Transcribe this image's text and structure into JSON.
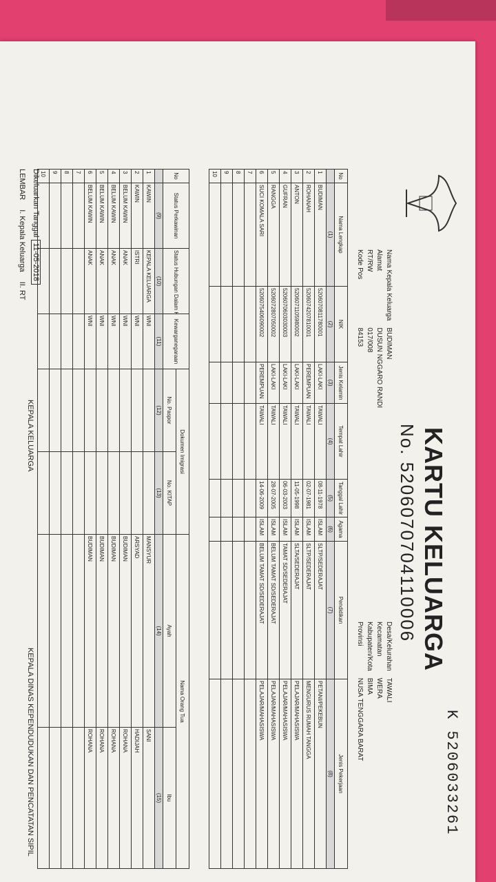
{
  "header": {
    "serial": "K 5206033261",
    "title": "KARTU KELUARGA",
    "number": "No. 5206070704110006",
    "fields_left": [
      {
        "label": "Nama Kepala Keluarga",
        "value": "BUDIMAN"
      },
      {
        "label": "Alamat",
        "value": "DUSUN NGGARO RANDI"
      },
      {
        "label": "RT/RW",
        "value": "017/008"
      },
      {
        "label": "Kode Pos",
        "value": "84153"
      }
    ],
    "fields_right": [
      {
        "label": "Desa/Kelurahan",
        "value": "TAWALI"
      },
      {
        "label": "Kecamatan",
        "value": "WERA"
      },
      {
        "label": "Kabupaten/Kota",
        "value": "BIMA"
      },
      {
        "label": "Provinsi",
        "value": "NUSA TENGGARA BARAT"
      }
    ]
  },
  "members_table": {
    "headers": [
      "No",
      "Nama Lengkap",
      "NIK",
      "Jenis Kelamin",
      "Tempat Lahir",
      "Tanggal Lahir",
      "Agama",
      "Pendidikan",
      "Jenis Pekerjaan"
    ],
    "column_numbers": [
      "(1)",
      "(2)",
      "(3)",
      "(4)",
      "(5)",
      "(6)",
      "(7)",
      "(8)"
    ],
    "rows": [
      [
        "1",
        "BUDIMAN",
        "5206070811780001",
        "LAKI-LAKI",
        "TAWALI",
        "08-11-1978",
        "ISLAM",
        "SLTP/SEDERAJAT",
        "PETANI/PEKEBUN"
      ],
      [
        "2",
        "ROHANAH",
        "5206074207810001",
        "PEREMPUAN",
        "TAWALI",
        "02-07-1981",
        "ISLAM",
        "SLTP/SEDERAJAT",
        "MENGURUS RUMAH TANGGA"
      ],
      [
        "3",
        "ANTON",
        "5206071105980002",
        "LAKI-LAKI",
        "TAWALI",
        "11-05-1998",
        "ISLAM",
        "SLTA/SEDERAJAT",
        "PELAJAR/MAHASISWA"
      ],
      [
        "4",
        "GUFRAN",
        "5206070603030003",
        "LAKI-LAKI",
        "TAWALI",
        "06-03-2003",
        "ISLAM",
        "TAMAT SD/SEDERAJAT",
        "PELAJAR/MAHASISWA"
      ],
      [
        "5",
        "RANGGA",
        "5206072807050002",
        "LAKI-LAKI",
        "TAWALI",
        "28-07-2005",
        "ISLAM",
        "BELUM TAMAT SD/SEDERAJAT",
        "PELAJAR/MAHASISWA"
      ],
      [
        "6",
        "SUCI KOMALA SARI",
        "5206075406090002",
        "PEREMPUAN",
        "TAWALI",
        "14-06-2009",
        "ISLAM",
        "BELUM TAMAT SD/SEDERAJAT",
        "PELAJAR/MAHASISWA"
      ],
      [
        "7"
      ],
      [
        "8"
      ],
      [
        "9"
      ],
      [
        "10"
      ]
    ]
  },
  "status_table": {
    "headers": {
      "no": "No",
      "status_perkawinan": "Status Perkawinan",
      "hubungan": "Status Hubungan Dalam Keluarga",
      "kewarganegaraan": "Kewarganegaraan",
      "dokumen_imigrasi": "Dokumen Imigrasi",
      "no_paspor": "No. Paspor",
      "no_kitap": "No. KITAP",
      "nama_orang_tua": "Nama Orang Tua",
      "ayah": "Ayah",
      "ibu": "Ibu"
    },
    "column_numbers": {
      "status_perkawinan": "(9)",
      "hubungan": "(10)",
      "kewarganegaraan": "(11)",
      "no_paspor": "(12)",
      "no_kitap": "(13)",
      "ayah": "(14)",
      "ibu": "(15)"
    },
    "rows": [
      {
        "no": "1",
        "status_perkawinan": "KAWIN",
        "hubungan": "KEPALA KELUARGA",
        "kewarganegaraan": "WNI",
        "ayah": "MANSYUR",
        "ibu": "SANI"
      },
      {
        "no": "2",
        "status_perkawinan": "KAWIN",
        "hubungan": "ISTRI",
        "kewarganegaraan": "WNI",
        "ayah": "ARSYAD",
        "ibu": "HADIJAH"
      },
      {
        "no": "3",
        "status_perkawinan": "BELUM KAWIN",
        "hubungan": "ANAK",
        "kewarganegaraan": "WNI",
        "ayah": "BUDIMAN",
        "ibu": "ROHANA"
      },
      {
        "no": "4",
        "status_perkawinan": "BELUM KAWIN",
        "hubungan": "ANAK",
        "kewarganegaraan": "WNI",
        "ayah": "BUDIMAN",
        "ibu": "ROHANA"
      },
      {
        "no": "5",
        "status_perkawinan": "BELUM KAWIN",
        "hubungan": "ANAK",
        "kewarganegaraan": "WNI",
        "ayah": "BUDIMAN",
        "ibu": "ROHANA"
      },
      {
        "no": "6",
        "status_perkawinan": "BELUM KAWIN",
        "hubungan": "ANAK",
        "kewarganegaraan": "WNI",
        "ayah": "BUDIMAN",
        "ibu": "ROHANA"
      },
      {
        "no": "7"
      },
      {
        "no": "8"
      },
      {
        "no": "9"
      },
      {
        "no": "10"
      }
    ]
  },
  "footer": {
    "issued_label": "Dikeluarkan Tanggal",
    "issued_date": "11-05-2018",
    "lembar": "LEMBAR",
    "lembar_items": [
      "I. Kepala Keluarga",
      "II. RT"
    ],
    "sign_left": "KEPALA KELUARGA",
    "sign_right": "KEPALA DINAS KEPENDUDUKAN DAN PENCATATAN SIPIL"
  }
}
